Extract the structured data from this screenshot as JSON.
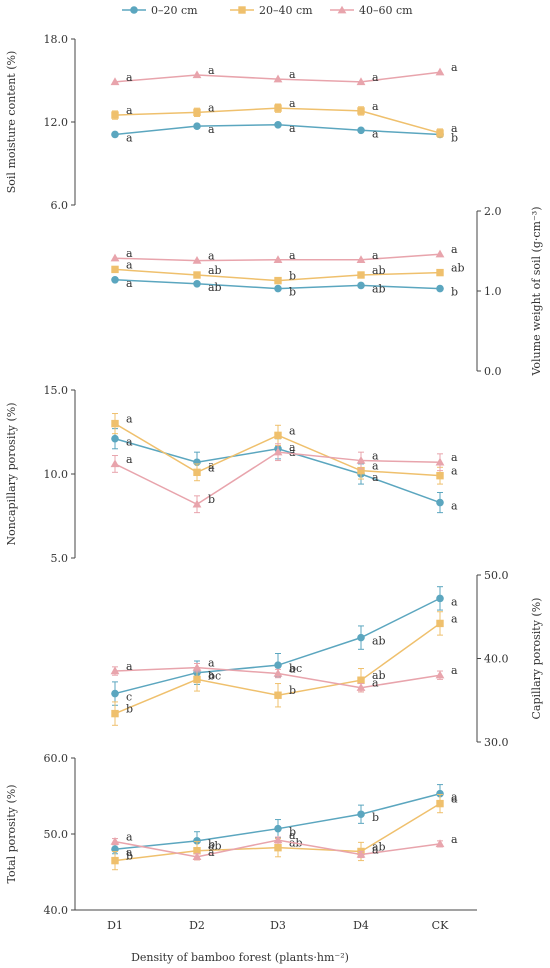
{
  "legend": [
    {
      "label": "0–20 cm",
      "color": "#5ba6bf",
      "marker": "circle"
    },
    {
      "label": "20–40 cm",
      "color": "#efc06d",
      "marker": "square"
    },
    {
      "label": "40–60 cm",
      "color": "#e8a4ac",
      "marker": "triangle"
    }
  ],
  "xlabel": "Density of bamboo forest (plants·hm⁻²)",
  "chart_data": [
    {
      "type": "line",
      "categories": [
        "D1",
        "D2",
        "D3",
        "D4",
        "CK"
      ],
      "ylabel": "Soil moisture content (%)",
      "ylim": [
        6.0,
        18.0
      ],
      "yticks": [
        "6.0",
        "12.0",
        "18.0"
      ],
      "axis_side": "left",
      "series": [
        {
          "name": "0–20 cm",
          "values": [
            11.1,
            11.7,
            11.8,
            11.4,
            11.1
          ],
          "errors": [
            0,
            0,
            0,
            0,
            0
          ],
          "labels": [
            "a",
            "a",
            "a",
            "a",
            "b"
          ]
        },
        {
          "name": "20–40 cm",
          "values": [
            12.5,
            12.7,
            13.0,
            12.8,
            11.2
          ],
          "errors": [
            0.3,
            0.3,
            0.3,
            0.3,
            0.3
          ],
          "labels": [
            "a",
            "a",
            "a",
            "a",
            "a"
          ]
        },
        {
          "name": "40–60 cm",
          "values": [
            14.9,
            15.4,
            15.1,
            14.9,
            15.6
          ],
          "errors": [
            0,
            0,
            0,
            0,
            0
          ],
          "labels": [
            "a",
            "a",
            "a",
            "a",
            "a"
          ]
        }
      ]
    },
    {
      "type": "line",
      "categories": [
        "D1",
        "D2",
        "D3",
        "D4",
        "CK"
      ],
      "ylabel": "Volume weight of soil (g·cm⁻³)",
      "ylim": [
        0.0,
        2.0
      ],
      "yticks": [
        "0.0",
        "1.0",
        "2.0"
      ],
      "axis_side": "right",
      "series": [
        {
          "name": "0–20 cm",
          "values": [
            1.14,
            1.09,
            1.03,
            1.07,
            1.03
          ],
          "errors": [
            0,
            0,
            0,
            0,
            0
          ],
          "labels": [
            "a",
            "ab",
            "b",
            "ab",
            "b"
          ]
        },
        {
          "name": "20–40 cm",
          "values": [
            1.27,
            1.2,
            1.13,
            1.2,
            1.23
          ],
          "errors": [
            0,
            0,
            0,
            0,
            0
          ],
          "labels": [
            "a",
            "ab",
            "b",
            "ab",
            "ab"
          ]
        },
        {
          "name": "40–60 cm",
          "values": [
            1.41,
            1.38,
            1.39,
            1.39,
            1.46
          ],
          "errors": [
            0,
            0,
            0,
            0,
            0
          ],
          "labels": [
            "a",
            "a",
            "a",
            "a",
            "a"
          ]
        }
      ]
    },
    {
      "type": "line",
      "categories": [
        "D1",
        "D2",
        "D3",
        "D4",
        "CK"
      ],
      "ylabel": "Noncapillary porosity (%)",
      "ylim": [
        5.0,
        15.0
      ],
      "yticks": [
        "5.0",
        "10.0",
        "15.0"
      ],
      "axis_side": "left",
      "series": [
        {
          "name": "0–20 cm",
          "values": [
            12.1,
            10.7,
            11.5,
            10.0,
            8.3
          ],
          "errors": [
            0.6,
            0.6,
            0.6,
            0.6,
            0.6
          ],
          "labels": [
            "a",
            "a",
            "a",
            "a",
            "a"
          ]
        },
        {
          "name": "20–40 cm",
          "values": [
            13.0,
            10.1,
            12.3,
            10.2,
            9.9
          ],
          "errors": [
            0.6,
            0.5,
            0.6,
            0.5,
            0.5
          ],
          "labels": [
            "a",
            "a",
            "a",
            "a",
            "a"
          ]
        },
        {
          "name": "40–60 cm",
          "values": [
            10.6,
            8.2,
            11.3,
            10.8,
            10.7
          ],
          "errors": [
            0.5,
            0.5,
            0.5,
            0.5,
            0.5
          ],
          "labels": [
            "a",
            "b",
            "a",
            "a",
            "a"
          ]
        }
      ]
    },
    {
      "type": "line",
      "categories": [
        "D1",
        "D2",
        "D3",
        "D4",
        "CK"
      ],
      "ylabel": "Capillary porosity (%)",
      "ylim": [
        30.0,
        50.0
      ],
      "yticks": [
        "30.0",
        "40.0",
        "50.0"
      ],
      "axis_side": "right",
      "series": [
        {
          "name": "0–20 cm",
          "values": [
            35.8,
            38.3,
            39.2,
            42.5,
            47.2
          ],
          "errors": [
            1.4,
            1.4,
            1.4,
            1.4,
            1.4
          ],
          "labels": [
            "c",
            "bc",
            "bc",
            "ab",
            "a"
          ]
        },
        {
          "name": "20–40 cm",
          "values": [
            33.4,
            37.5,
            35.6,
            37.4,
            44.2
          ],
          "errors": [
            1.4,
            1.4,
            1.4,
            1.4,
            1.4
          ],
          "labels": [
            "b",
            "a",
            "b",
            "ab",
            "a"
          ]
        },
        {
          "name": "40–60 cm",
          "values": [
            38.5,
            38.9,
            38.2,
            36.5,
            38.0
          ],
          "errors": [
            0.5,
            0.5,
            0.5,
            0.5,
            0.5
          ],
          "labels": [
            "a",
            "a",
            "a",
            "a",
            "a"
          ]
        }
      ]
    },
    {
      "type": "line",
      "categories": [
        "D1",
        "D2",
        "D3",
        "D4",
        "CK"
      ],
      "ylabel": "Total porosity (%)",
      "ylim": [
        40.0,
        60.0
      ],
      "yticks": [
        "40.0",
        "50.0",
        "60.0"
      ],
      "axis_side": "left",
      "series": [
        {
          "name": "0–20 cm",
          "values": [
            48.0,
            49.1,
            50.7,
            52.6,
            55.3
          ],
          "errors": [
            0.6,
            1.2,
            1.2,
            1.2,
            1.2
          ],
          "labels": [
            "a",
            "b",
            "b",
            "b",
            "a"
          ]
        },
        {
          "name": "20–40 cm",
          "values": [
            46.5,
            47.8,
            48.2,
            47.7,
            54.0
          ],
          "errors": [
            1.2,
            1.2,
            1.2,
            1.2,
            1.2
          ],
          "labels": [
            "b",
            "ab",
            "ab",
            "ab",
            "a"
          ]
        },
        {
          "name": "40–60 cm",
          "values": [
            49.0,
            47.0,
            49.2,
            47.3,
            48.7
          ],
          "errors": [
            0.4,
            0.4,
            0.4,
            0.4,
            0.4
          ],
          "labels": [
            "a",
            "a",
            "a",
            "a",
            "a"
          ]
        }
      ]
    }
  ]
}
